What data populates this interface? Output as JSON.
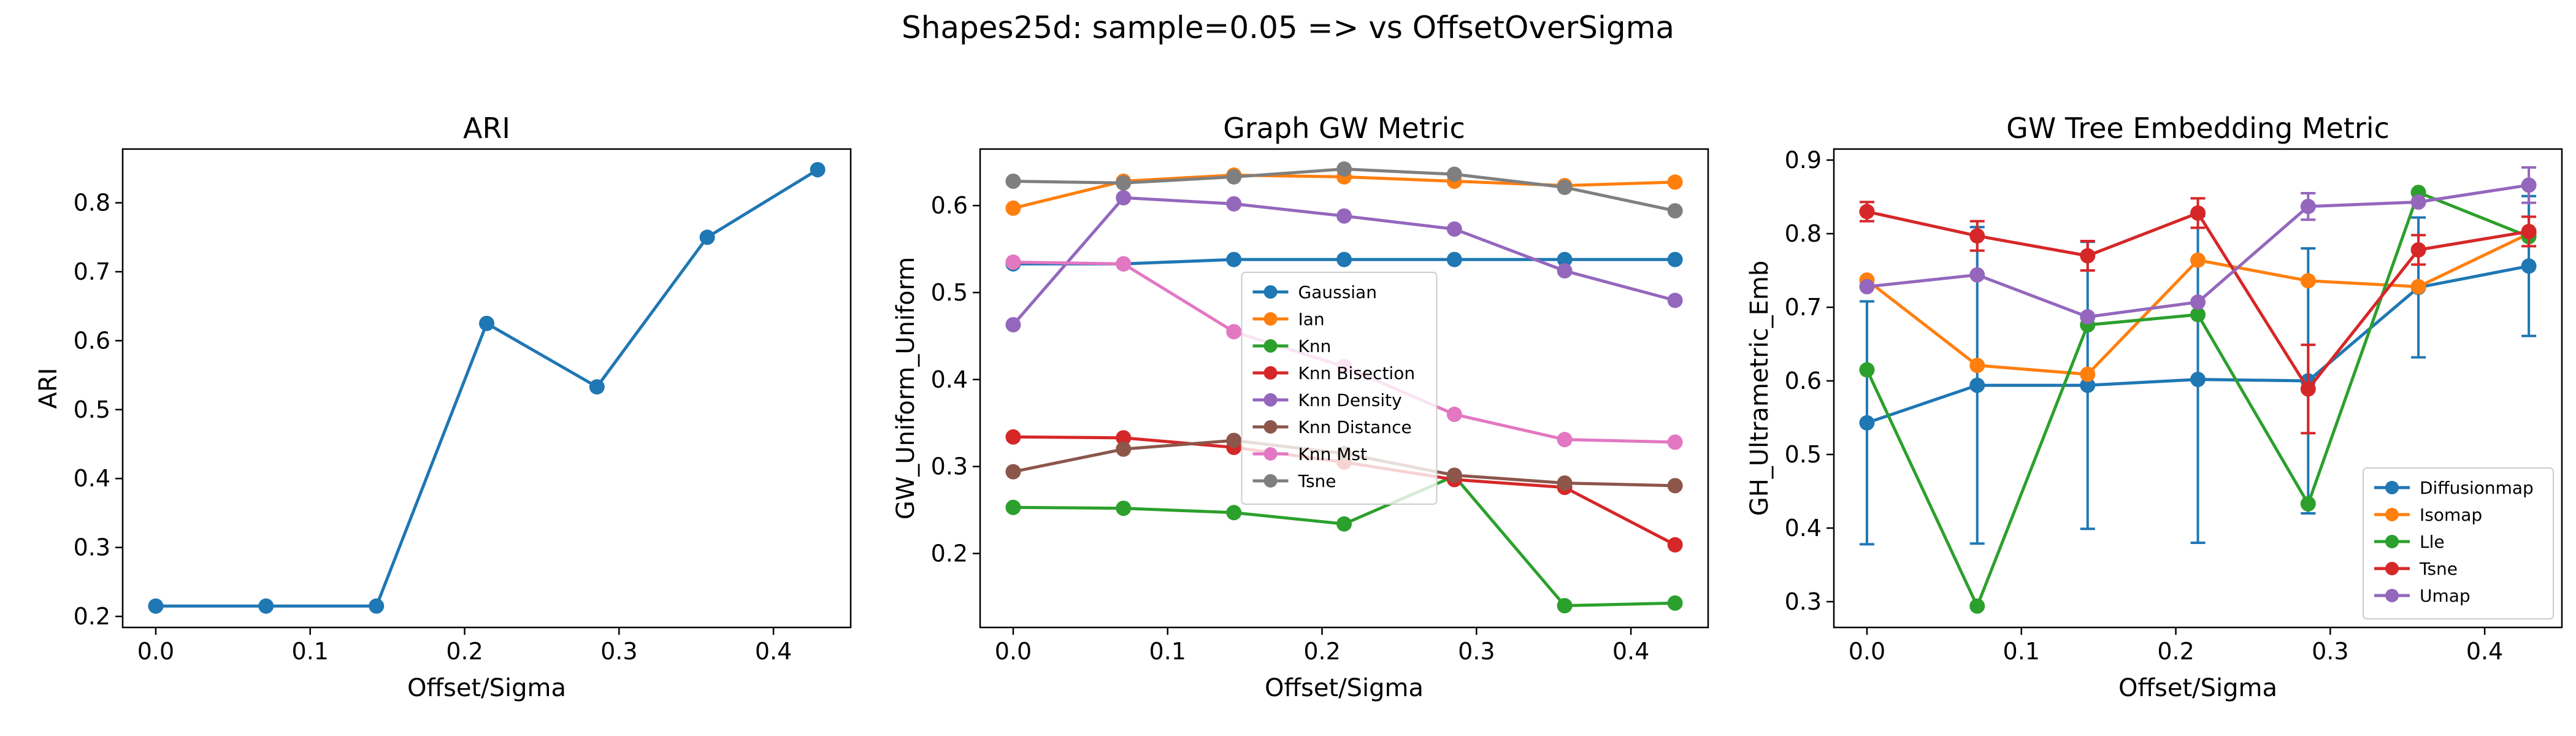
{
  "figure": {
    "suptitle": "Shapes25d: sample=0.05 => vs OffsetOverSigma"
  },
  "colors": [
    "#1f77b4",
    "#ff7f0e",
    "#2ca02c",
    "#d62728",
    "#9467bd",
    "#8c564b",
    "#e377c2",
    "#7f7f7f"
  ],
  "chart_data": [
    {
      "type": "line",
      "title": "ARI",
      "xlabel": "Offset/Sigma",
      "ylabel": "ARI",
      "xlim": [
        -0.02143,
        0.45
      ],
      "ylim": [
        0.184,
        0.878
      ],
      "xticks": [
        0.0,
        0.1,
        0.2,
        0.3,
        0.4
      ],
      "xticklabels": [
        "0.0",
        "0.1",
        "0.2",
        "0.3",
        "0.4"
      ],
      "yticks": [
        0.2,
        0.3,
        0.4,
        0.5,
        0.6,
        0.7,
        0.8
      ],
      "yticklabels": [
        "0.2",
        "0.3",
        "0.4",
        "0.5",
        "0.6",
        "0.7",
        "0.8"
      ],
      "grid": false,
      "legend": null,
      "x": [
        0.0,
        0.0714,
        0.1429,
        0.2143,
        0.2857,
        0.3571,
        0.4286
      ],
      "series": [
        {
          "values": [
            0.215,
            0.215,
            0.215,
            0.625,
            0.533,
            0.75,
            0.848
          ]
        }
      ]
    },
    {
      "type": "line",
      "title": "Graph GW Metric",
      "xlabel": "Offset/Sigma",
      "ylabel": "GW_Uniform_Uniform",
      "xlim": [
        -0.02143,
        0.45
      ],
      "ylim": [
        0.115,
        0.665
      ],
      "xticks": [
        0.0,
        0.1,
        0.2,
        0.3,
        0.4
      ],
      "xticklabels": [
        "0.0",
        "0.1",
        "0.2",
        "0.3",
        "0.4"
      ],
      "yticks": [
        0.2,
        0.3,
        0.4,
        0.5,
        0.6
      ],
      "yticklabels": [
        "0.2",
        "0.3",
        "0.4",
        "0.5",
        "0.6"
      ],
      "grid": false,
      "legend": "center",
      "x": [
        0.0,
        0.0714,
        0.1429,
        0.2143,
        0.2857,
        0.3571,
        0.4286
      ],
      "series": [
        {
          "name": "Gaussian",
          "values": [
            0.533,
            0.533,
            0.538,
            0.538,
            0.538,
            0.538,
            0.538
          ]
        },
        {
          "name": "Ian",
          "values": [
            0.597,
            0.628,
            0.635,
            0.633,
            0.628,
            0.623,
            0.627
          ]
        },
        {
          "name": "Knn",
          "values": [
            0.253,
            0.252,
            0.247,
            0.234,
            0.289,
            0.14,
            0.143
          ]
        },
        {
          "name": "Knn Bisection",
          "values": [
            0.334,
            0.333,
            0.322,
            0.305,
            0.285,
            0.276,
            0.21
          ]
        },
        {
          "name": "Knn Density",
          "values": [
            0.463,
            0.609,
            0.602,
            0.588,
            0.573,
            0.525,
            0.491
          ]
        },
        {
          "name": "Knn Distance",
          "values": [
            0.294,
            0.32,
            0.33,
            0.315,
            0.29,
            0.281,
            0.278
          ]
        },
        {
          "name": "Knn Mst",
          "values": [
            0.535,
            0.533,
            0.455,
            0.415,
            0.36,
            0.331,
            0.328
          ]
        },
        {
          "name": "Tsne",
          "values": [
            0.628,
            0.626,
            0.633,
            0.642,
            0.636,
            0.621,
            0.594
          ]
        }
      ]
    },
    {
      "type": "line",
      "title": "GW Tree Embedding Metric",
      "xlabel": "Offset/Sigma",
      "ylabel": "GH_Ultrametric_Emb",
      "xlim": [
        -0.02143,
        0.45
      ],
      "ylim": [
        0.265,
        0.915
      ],
      "xticks": [
        0.0,
        0.1,
        0.2,
        0.3,
        0.4
      ],
      "xticklabels": [
        "0.0",
        "0.1",
        "0.2",
        "0.3",
        "0.4"
      ],
      "yticks": [
        0.3,
        0.4,
        0.5,
        0.6,
        0.7,
        0.8,
        0.9
      ],
      "yticklabels": [
        "0.3",
        "0.4",
        "0.5",
        "0.6",
        "0.7",
        "0.8",
        "0.9"
      ],
      "grid": false,
      "legend": "lower right",
      "x": [
        0.0,
        0.0714,
        0.1429,
        0.2143,
        0.2857,
        0.3571,
        0.4286
      ],
      "series": [
        {
          "name": "Diffusionmap",
          "values": [
            0.543,
            0.594,
            0.594,
            0.602,
            0.6,
            0.727,
            0.756
          ],
          "err": [
            0.165,
            0.215,
            0.195,
            0.222,
            0.18,
            0.095,
            0.095
          ]
        },
        {
          "name": "Isomap",
          "values": [
            0.737,
            0.621,
            0.609,
            0.764,
            0.736,
            0.728,
            0.8
          ],
          "err": [
            0.0,
            0.0,
            0.0,
            0.0,
            0.0,
            0.0,
            0.0
          ]
        },
        {
          "name": "Lle",
          "values": [
            0.615,
            0.294,
            0.676,
            0.69,
            0.433,
            0.856,
            0.796
          ],
          "err": [
            0.0,
            0.0,
            0.0,
            0.0,
            0.0,
            0.0,
            0.0
          ]
        },
        {
          "name": "Tsne",
          "values": [
            0.83,
            0.797,
            0.77,
            0.828,
            0.589,
            0.778,
            0.803
          ],
          "err": [
            0.013,
            0.02,
            0.02,
            0.02,
            0.06,
            0.02,
            0.02
          ]
        },
        {
          "name": "Umap",
          "values": [
            0.728,
            0.744,
            0.687,
            0.707,
            0.837,
            0.843,
            0.866
          ],
          "err": [
            0.0,
            0.0,
            0.0,
            0.0,
            0.018,
            0.0,
            0.024
          ]
        }
      ]
    }
  ]
}
